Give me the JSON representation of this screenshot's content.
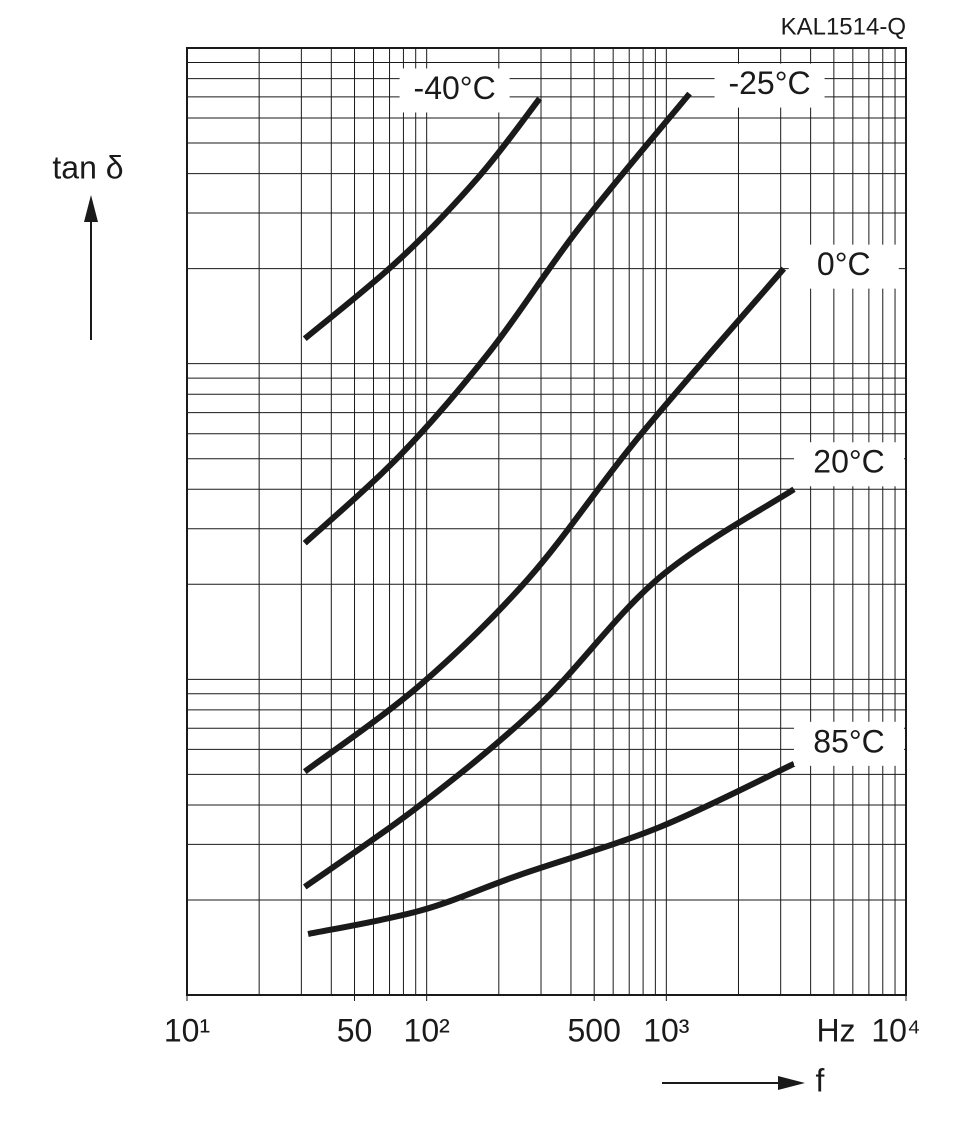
{
  "chart_data": {
    "type": "line",
    "title": "KAL1514-Q",
    "y_label": "tan δ",
    "x_label": "f",
    "x_unit": "Hz",
    "log_x": true,
    "log_y": true,
    "grid": true,
    "xlim": [
      10,
      10000
    ],
    "xticks": [
      {
        "value": 10,
        "label": "10¹"
      },
      50,
      {
        "value": 100,
        "label": "10²"
      },
      500,
      {
        "value": 1000,
        "label": "10³"
      },
      {
        "value": 10000,
        "label": "10⁴"
      }
    ],
    "ylim": [
      1,
      1000
    ],
    "series": [
      {
        "name": "-40°C",
        "color": "#1a1a1a",
        "x": [
          31,
          77,
          166,
          296
        ],
        "values": [
          120,
          214,
          393,
          692
        ]
      },
      {
        "name": "-25°C",
        "color": "#1a1a1a",
        "x": [
          31,
          77,
          183,
          434,
          1250
        ],
        "values": [
          27,
          51,
          109,
          270,
          717
        ]
      },
      {
        "name": "0°C",
        "color": "#1a1a1a",
        "x": [
          31,
          94,
          268,
          773,
          3090
        ],
        "values": [
          5.1,
          9.6,
          21,
          59,
          200
        ]
      },
      {
        "name": "20°C",
        "color": "#1a1a1a",
        "x": [
          31,
          94,
          296,
          935,
          3410
        ],
        "values": [
          2.2,
          4.0,
          8.3,
          21,
          40
        ]
      },
      {
        "name": "85°C",
        "color": "#1a1a1a",
        "x": [
          32,
          94,
          244,
          935,
          3410
        ],
        "values": [
          1.56,
          1.85,
          2.4,
          3.4,
          5.4
        ]
      }
    ]
  }
}
